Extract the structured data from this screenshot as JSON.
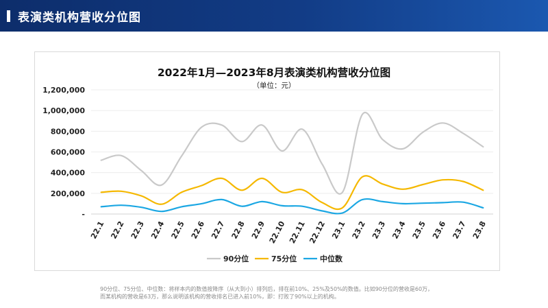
{
  "header": {
    "title": "表演类机构营收分位图"
  },
  "chart_data": {
    "type": "line",
    "title": "2022年1月—2023年8月表演类机构营收分位图",
    "subtitle": "（单位：元）",
    "categories": [
      "22.1",
      "22.2",
      "22.3",
      "22.4",
      "22.5",
      "22.6",
      "22.7",
      "22.8",
      "22.9",
      "22.10",
      "22.11",
      "22.12",
      "23.1",
      "23.2",
      "23.3",
      "23.4",
      "23.5",
      "23.6",
      "23.7",
      "23.8"
    ],
    "ylim": [
      0,
      1200000
    ],
    "yticks": [
      0,
      200000,
      400000,
      600000,
      800000,
      1000000,
      1200000
    ],
    "ytick_labels": [
      "-",
      "200,000",
      "400,000",
      "600,000",
      "800,000",
      "1,000,000",
      "1,200,000"
    ],
    "grid": true,
    "legend_position": "bottom",
    "series": [
      {
        "name": "90分位",
        "color": "#c9c9c9",
        "values": [
          520000,
          565000,
          420000,
          280000,
          560000,
          840000,
          860000,
          700000,
          860000,
          610000,
          820000,
          480000,
          210000,
          965000,
          720000,
          630000,
          790000,
          880000,
          780000,
          650000
        ]
      },
      {
        "name": "75分位",
        "color": "#f5b800",
        "values": [
          210000,
          220000,
          175000,
          95000,
          210000,
          275000,
          345000,
          230000,
          345000,
          210000,
          235000,
          110000,
          60000,
          360000,
          290000,
          240000,
          285000,
          330000,
          315000,
          230000
        ]
      },
      {
        "name": "中位数",
        "color": "#1ba7e3",
        "values": [
          70000,
          85000,
          65000,
          25000,
          70000,
          100000,
          140000,
          75000,
          120000,
          80000,
          75000,
          30000,
          10000,
          140000,
          120000,
          100000,
          105000,
          110000,
          115000,
          60000
        ]
      }
    ]
  },
  "footnote": {
    "line1": "90分位、75分位、中位数：将样本内的数值按降序（从大到小）排列后，排在前10%、25%及50%的数值。比如90分位的营收是60万，",
    "line2": "而某机构的营收是63万，那么说明该机构的营收排名已进入前10%，即：打败了90%以上的机构。"
  }
}
